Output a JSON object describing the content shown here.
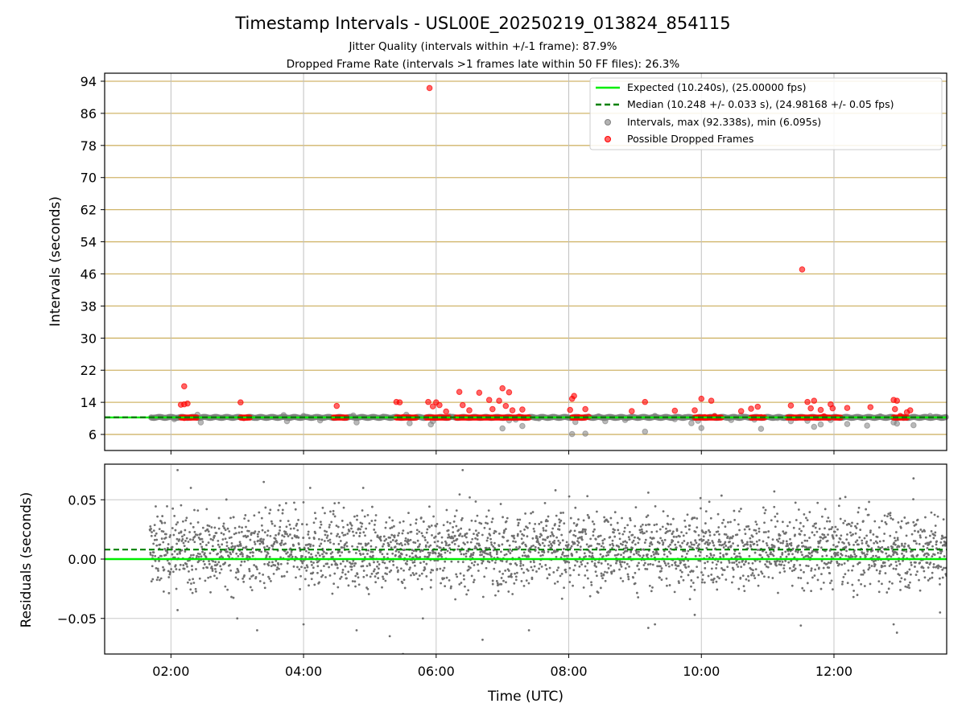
{
  "chart_data": [
    {
      "type": "scatter",
      "title": "Timestamp Intervals - USL00E_20250219_013824_854115",
      "subtitle_lines": [
        "Jitter Quality (intervals within +/-1 frame): 87.9%",
        "Dropped Frame Rate (intervals >1 frames late within 50 FF files): 26.3%"
      ],
      "xlabel": "",
      "ylabel": "Intervals (seconds)",
      "x_range_hours": [
        1.0,
        13.7
      ],
      "ylim": [
        2,
        96
      ],
      "y_ticks": [
        6,
        14,
        22,
        30,
        38,
        46,
        54,
        62,
        70,
        78,
        86,
        94
      ],
      "y_tick_labels": [
        "6",
        "14",
        "22",
        "30",
        "38",
        "46",
        "54",
        "62",
        "70",
        "78",
        "86",
        "94"
      ],
      "grid": "on",
      "legend_position": "top-right",
      "series": [
        {
          "name": "Expected (10.240s), (25.00000 fps)",
          "kind": "line",
          "value": 10.24,
          "color": "#00ee00"
        },
        {
          "name": "Median (10.248 +/- 0.033 s), (24.98168 +/- 0.05 fps)",
          "kind": "dashed-line",
          "value": 10.248,
          "color": "#008000"
        },
        {
          "name": "Intervals, max (92.338s), min (6.095s)",
          "kind": "scatter",
          "color": "#808080",
          "points": [
            [
              1.75,
              10.2
            ],
            [
              2.05,
              9.8
            ],
            [
              2.4,
              10.9
            ],
            [
              2.45,
              9.0
            ],
            [
              3.3,
              10.1
            ],
            [
              3.7,
              10.8
            ],
            [
              3.75,
              9.3
            ],
            [
              4.0,
              10.6
            ],
            [
              4.25,
              9.5
            ],
            [
              4.4,
              10.3
            ],
            [
              4.75,
              10.7
            ],
            [
              4.8,
              9.0
            ],
            [
              5.2,
              10.4
            ],
            [
              5.55,
              10.9
            ],
            [
              5.6,
              8.8
            ],
            [
              5.95,
              9.3
            ],
            [
              5.92,
              8.5
            ],
            [
              6.2,
              10.5
            ],
            [
              7.0,
              7.5
            ],
            [
              7.1,
              9.5
            ],
            [
              7.2,
              9.7
            ],
            [
              7.3,
              8.1
            ],
            [
              7.55,
              10.0
            ],
            [
              7.75,
              10.3
            ],
            [
              8.05,
              6.1
            ],
            [
              8.1,
              9.1
            ],
            [
              8.25,
              6.2
            ],
            [
              8.45,
              10.5
            ],
            [
              8.55,
              9.3
            ],
            [
              8.75,
              10.2
            ],
            [
              8.85,
              9.6
            ],
            [
              9.15,
              6.7
            ],
            [
              9.3,
              10.6
            ],
            [
              9.6,
              9.8
            ],
            [
              9.75,
              10.3
            ],
            [
              9.85,
              8.8
            ],
            [
              9.95,
              9.4
            ],
            [
              10.0,
              7.6
            ],
            [
              10.2,
              10.6
            ],
            [
              10.45,
              9.6
            ],
            [
              10.6,
              10.7
            ],
            [
              10.8,
              9.7
            ],
            [
              10.9,
              7.4
            ],
            [
              11.15,
              10.1
            ],
            [
              11.35,
              9.3
            ],
            [
              11.6,
              9.4
            ],
            [
              11.7,
              7.9
            ],
            [
              11.8,
              8.5
            ],
            [
              11.95,
              9.6
            ],
            [
              12.2,
              8.6
            ],
            [
              12.5,
              8.2
            ],
            [
              12.7,
              10.5
            ],
            [
              12.9,
              9.0
            ],
            [
              12.95,
              8.7
            ],
            [
              13.05,
              10.1
            ],
            [
              13.2,
              8.3
            ],
            [
              13.45,
              10.6
            ],
            [
              13.65,
              10.2
            ]
          ]
        },
        {
          "name": "Possible Dropped Frames",
          "kind": "scatter",
          "color": "#ff0000",
          "points": [
            [
              2.2,
              18.0
            ],
            [
              2.15,
              13.4
            ],
            [
              2.2,
              13.5
            ],
            [
              2.25,
              13.7
            ],
            [
              2.2,
              10.1
            ],
            [
              2.3,
              10.2
            ],
            [
              3.05,
              14.0
            ],
            [
              3.1,
              10.1
            ],
            [
              3.15,
              10.2
            ],
            [
              4.5,
              13.1
            ],
            [
              4.6,
              10.2
            ],
            [
              5.4,
              14.1
            ],
            [
              5.45,
              14.0
            ],
            [
              5.5,
              10.3
            ],
            [
              5.9,
              92.3
            ],
            [
              5.88,
              14.1
            ],
            [
              5.95,
              13.0
            ],
            [
              6.0,
              14.0
            ],
            [
              6.05,
              13.3
            ],
            [
              6.15,
              11.7
            ],
            [
              6.35,
              16.6
            ],
            [
              6.4,
              13.3
            ],
            [
              6.5,
              12.0
            ],
            [
              6.65,
              16.4
            ],
            [
              6.8,
              14.6
            ],
            [
              6.85,
              12.3
            ],
            [
              6.95,
              14.4
            ],
            [
              7.0,
              17.5
            ],
            [
              7.1,
              16.5
            ],
            [
              7.05,
              13.1
            ],
            [
              7.15,
              12.0
            ],
            [
              7.3,
              12.2
            ],
            [
              7.25,
              10.4
            ],
            [
              8.05,
              14.9
            ],
            [
              8.08,
              15.6
            ],
            [
              8.02,
              12.1
            ],
            [
              8.15,
              10.3
            ],
            [
              8.25,
              12.3
            ],
            [
              8.3,
              10.4
            ],
            [
              8.95,
              11.8
            ],
            [
              9.15,
              14.1
            ],
            [
              9.6,
              11.9
            ],
            [
              9.9,
              12.0
            ],
            [
              10.0,
              14.9
            ],
            [
              10.05,
              10.3
            ],
            [
              10.15,
              14.4
            ],
            [
              10.2,
              10.5
            ],
            [
              10.6,
              11.8
            ],
            [
              10.75,
              12.4
            ],
            [
              10.85,
              12.9
            ],
            [
              10.9,
              10.3
            ],
            [
              11.35,
              13.2
            ],
            [
              11.52,
              47.1
            ],
            [
              11.6,
              14.1
            ],
            [
              11.65,
              12.5
            ],
            [
              11.7,
              14.4
            ],
            [
              11.8,
              12.1
            ],
            [
              11.85,
              10.5
            ],
            [
              11.95,
              13.5
            ],
            [
              11.98,
              12.5
            ],
            [
              12.2,
              12.6
            ],
            [
              12.55,
              12.8
            ],
            [
              12.9,
              14.6
            ],
            [
              12.95,
              14.4
            ],
            [
              12.92,
              12.3
            ],
            [
              13.0,
              10.6
            ],
            [
              13.1,
              11.5
            ],
            [
              13.15,
              12.0
            ]
          ],
          "bands": [
            [
              2.15,
              2.4
            ],
            [
              3.05,
              3.2
            ],
            [
              4.45,
              4.65
            ],
            [
              5.4,
              5.7
            ],
            [
              5.85,
              6.2
            ],
            [
              6.3,
              7.4
            ],
            [
              8.05,
              8.25
            ],
            [
              9.9,
              10.3
            ],
            [
              10.75,
              10.95
            ],
            [
              11.3,
              11.95
            ],
            [
              12.0,
              12.1
            ],
            [
              12.9,
              13.1
            ]
          ]
        }
      ]
    },
    {
      "type": "scatter",
      "xlabel": "Time (UTC)",
      "ylabel": "Residuals (seconds)",
      "x_range_hours": [
        1.0,
        13.7
      ],
      "ylim": [
        -0.08,
        0.08
      ],
      "y_ticks": [
        0.05,
        0.0,
        -0.05
      ],
      "y_tick_labels": [
        "0.05",
        "0.00",
        "−0.05"
      ],
      "x_ticks": [
        2,
        4,
        6,
        8,
        10,
        12
      ],
      "x_tick_labels": [
        "02:00",
        "04:00",
        "06:00",
        "08:00",
        "10:00",
        "12:00"
      ],
      "grid": "on",
      "series": [
        {
          "kind": "line",
          "value": 0.0,
          "color": "#00ee00"
        },
        {
          "kind": "dashed-line",
          "value": 0.008,
          "color": "#008000"
        },
        {
          "kind": "scatter",
          "color": "#707070",
          "start_hour": 1.68,
          "end_hour": 13.7,
          "point_count": 3000,
          "center": 0.008,
          "spread": 0.022,
          "outliers": [
            [
              2.1,
              0.075
            ],
            [
              6.4,
              0.075
            ],
            [
              2.3,
              0.06
            ],
            [
              3.4,
              0.065
            ],
            [
              4.1,
              0.06
            ],
            [
              4.9,
              0.06
            ],
            [
              7.8,
              0.058
            ],
            [
              9.2,
              0.056
            ],
            [
              11.1,
              0.057
            ],
            [
              13.2,
              0.068
            ],
            [
              2.1,
              -0.043
            ],
            [
              3.0,
              -0.05
            ],
            [
              3.3,
              -0.06
            ],
            [
              4.0,
              -0.055
            ],
            [
              4.8,
              -0.06
            ],
            [
              5.3,
              -0.065
            ],
            [
              5.5,
              -0.08
            ],
            [
              5.8,
              -0.05
            ],
            [
              6.7,
              -0.068
            ],
            [
              7.4,
              -0.06
            ],
            [
              9.2,
              -0.058
            ],
            [
              9.3,
              -0.055
            ],
            [
              9.9,
              -0.047
            ],
            [
              11.5,
              -0.056
            ],
            [
              12.9,
              -0.055
            ],
            [
              12.95,
              -0.062
            ],
            [
              13.6,
              -0.045
            ]
          ]
        }
      ]
    }
  ]
}
